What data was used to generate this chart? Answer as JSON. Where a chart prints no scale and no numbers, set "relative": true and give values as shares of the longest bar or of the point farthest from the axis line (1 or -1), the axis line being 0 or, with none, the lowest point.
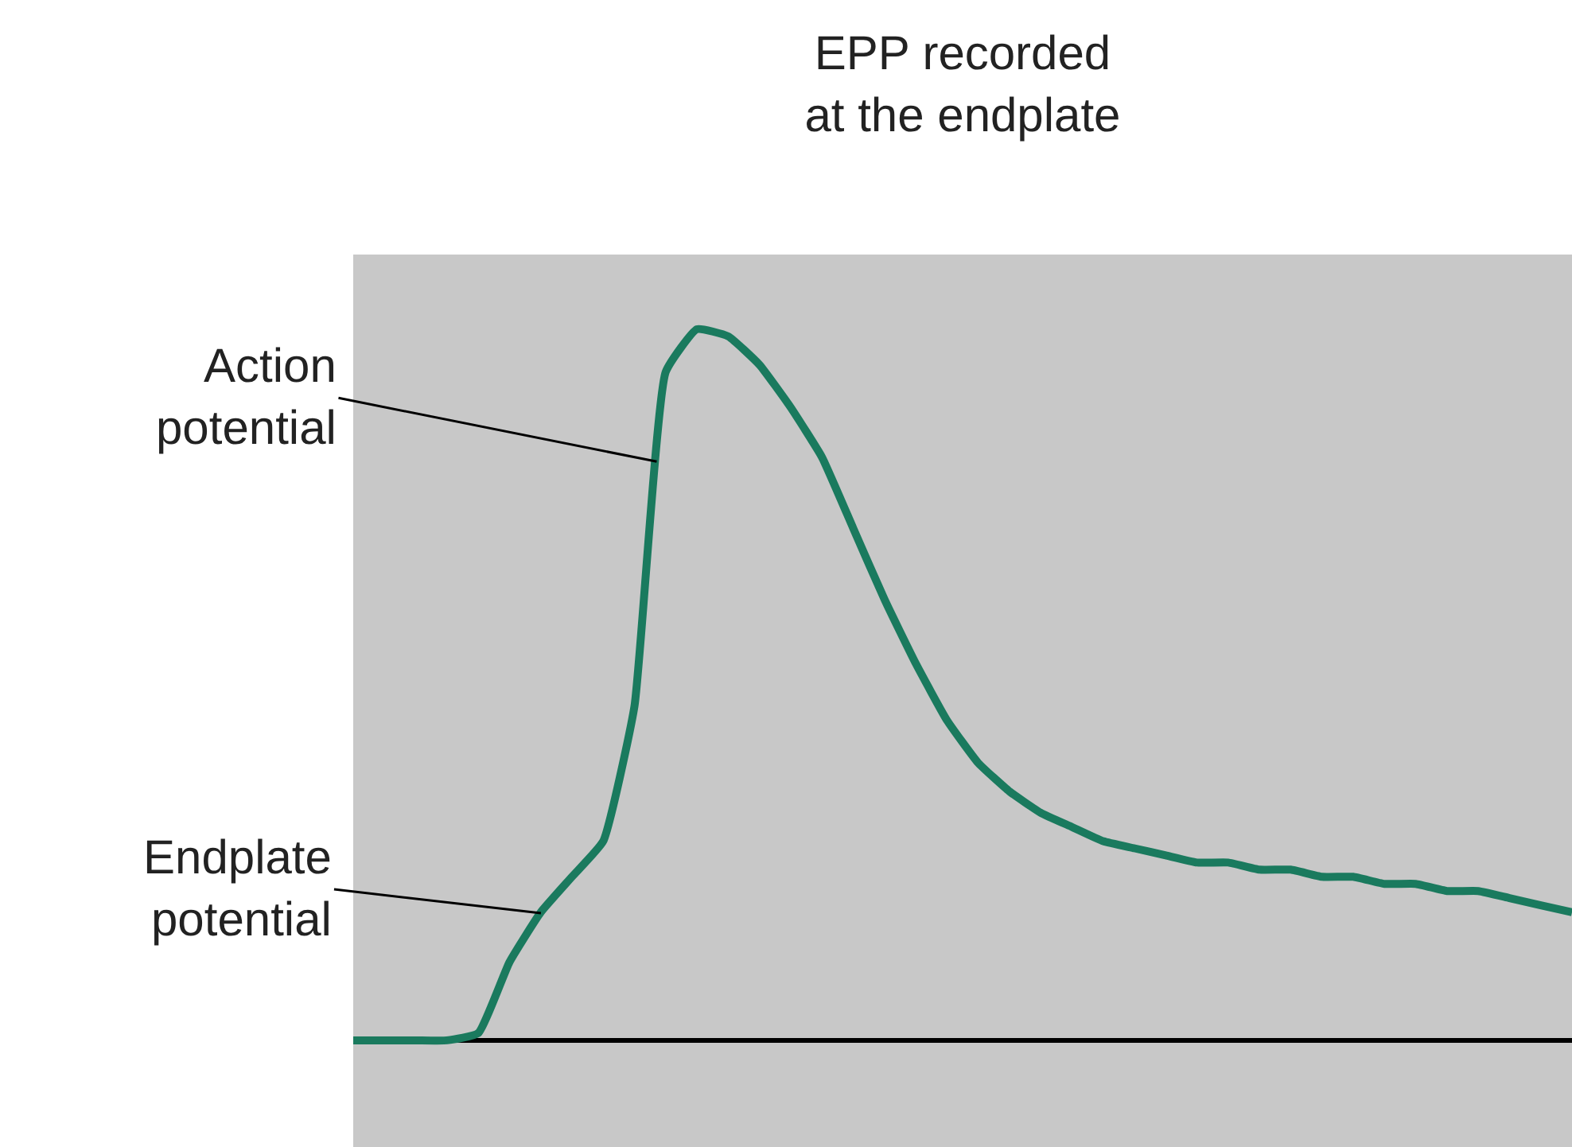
{
  "chart_data": {
    "type": "line",
    "title": "EPP recorded\nat the endplate",
    "relative": true,
    "categories": [
      null,
      null,
      null,
      null,
      null,
      null,
      null,
      null,
      null,
      null,
      null,
      null,
      null,
      null,
      null,
      null,
      null,
      null,
      null,
      null,
      null,
      null,
      null,
      null,
      null,
      null,
      null,
      null,
      null,
      null,
      null,
      null,
      null,
      null,
      null,
      null,
      null,
      null,
      null,
      null
    ],
    "series": [
      {
        "color": "#1a7a5e",
        "values": [
          0,
          0,
          0,
          0,
          0.01,
          0.11,
          0.18,
          0.23,
          0.28,
          0.47,
          0.94,
          1,
          0.99,
          0.95,
          0.89,
          0.82,
          0.72,
          0.62,
          0.53,
          0.45,
          0.39,
          0.35,
          0.32,
          0.3,
          0.28,
          0.27,
          0.26,
          0.25,
          0.25,
          0.24,
          0.24,
          0.23,
          0.23,
          0.22,
          0.22,
          0.21,
          0.21,
          0.2,
          0.19,
          0.18
        ]
      }
    ],
    "annotations": [
      "Action\npotential",
      "Endplate\npotential"
    ],
    "grid": false,
    "marker": "none",
    "line_style": "solid"
  }
}
